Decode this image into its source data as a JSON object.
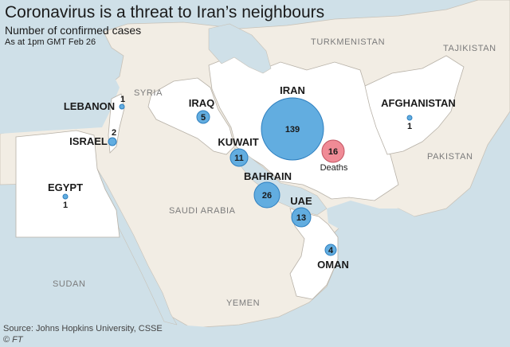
{
  "header": {
    "title": "Coronavirus is a threat to Iran’s neighbours",
    "subtitle": "Number of confirmed cases",
    "as_at": "As at 1pm GMT Feb 26"
  },
  "footer": {
    "source": "Source: Johns Hopkins University, CSSE",
    "credit_symbol": "©",
    "credit_org": "FT"
  },
  "colors": {
    "sea": "#cfe0e8",
    "land": "#ffffff",
    "neighbour_land": "#f2ede4",
    "bubble_cases": "#62ade0",
    "bubble_cases_stroke": "#2e7fbf",
    "bubble_deaths": "#f08b96",
    "bubble_deaths_stroke": "#c25563"
  },
  "background_labels": {
    "turkmenistan": "TURKMENISTAN",
    "tajikistan": "TAJIKISTAN",
    "syria": "SYRIA",
    "pakistan": "PAKISTAN",
    "saudi_arabia": "SAUDI ARABIA",
    "sudan": "SUDAN",
    "yemen": "YEMEN"
  },
  "countries": {
    "iran": {
      "label": "IRAN",
      "cases": 139,
      "cases_text": "139"
    },
    "iraq": {
      "label": "IRAQ",
      "cases": 5,
      "cases_text": "5"
    },
    "kuwait": {
      "label": "KUWAIT",
      "cases": 11,
      "cases_text": "11"
    },
    "bahrain": {
      "label": "BAHRAIN",
      "cases": 26,
      "cases_text": "26"
    },
    "uae": {
      "label": "UAE",
      "cases": 13,
      "cases_text": "13"
    },
    "oman": {
      "label": "OMAN",
      "cases": 4,
      "cases_text": "4"
    },
    "lebanon": {
      "label": "LEBANON",
      "cases": 1,
      "cases_text": "1"
    },
    "israel": {
      "label": "ISRAEL",
      "cases": 2,
      "cases_text": "2"
    },
    "egypt": {
      "label": "EGYPT",
      "cases": 1,
      "cases_text": "1"
    },
    "afghanistan": {
      "label": "AFGHANISTAN",
      "cases": 1,
      "cases_text": "1"
    }
  },
  "deaths": {
    "country": "iran",
    "count": 16,
    "count_text": "16",
    "label": "Deaths"
  }
}
